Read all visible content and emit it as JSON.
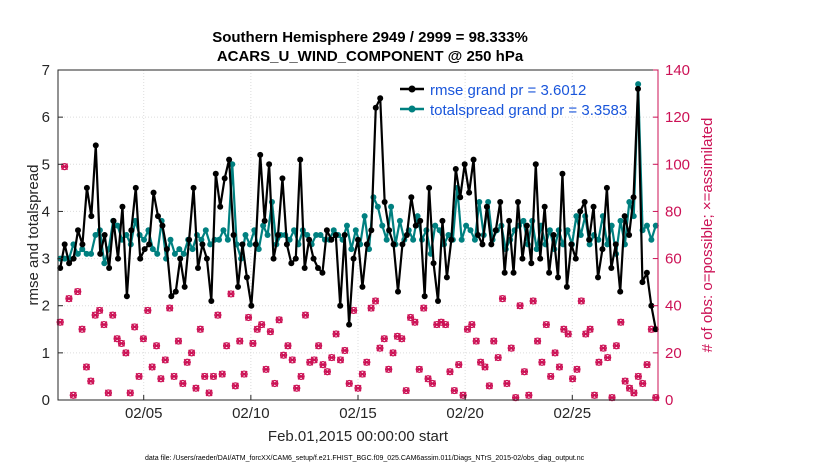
{
  "chart_data": {
    "type": "line",
    "title_line1": "Southern Hemisphere 2949 / 2999 = 98.333%",
    "title_line2": "ACARS_U_WIND_COMPONENT @ 250 hPa",
    "xlabel": "Feb.01,2015 00:00:00 start",
    "ylabel_left": "rmse and totalspread",
    "ylabel_right": "# of obs: o=possible; ×=assimilated",
    "footer": "data file: /Users/raeder/DAI/ATM_forcXX/CAM6_setup/f.e21.FHIST_BGC.f09_025.CAM6assim.011/Diags_NTrS_2015-02/obs_diag_output.nc",
    "x_range_days": [
      1,
      29
    ],
    "x_ticks": [
      {
        "label": "02/05",
        "day": 5
      },
      {
        "label": "02/10",
        "day": 10
      },
      {
        "label": "02/15",
        "day": 15
      },
      {
        "label": "02/20",
        "day": 20
      },
      {
        "label": "02/25",
        "day": 25
      }
    ],
    "ylim_left": [
      0,
      7
    ],
    "yticks_left": [
      "0",
      "1",
      "2",
      "3",
      "4",
      "5",
      "6",
      "7"
    ],
    "ylim_right": [
      0,
      140
    ],
    "yticks_right": [
      "0",
      "20",
      "40",
      "60",
      "80",
      "100",
      "120",
      "140"
    ],
    "grid": true,
    "legend_position": "top-right",
    "series": [
      {
        "name": "rmse grand pr = 3.6012",
        "color": "#000000",
        "axis": "left",
        "values": [
          2.8,
          3.3,
          2.9,
          3.0,
          3.6,
          3.3,
          4.5,
          3.9,
          5.4,
          3.1,
          3.5,
          2.8,
          3.8,
          3.0,
          4.1,
          2.2,
          3.6,
          4.5,
          3.0,
          3.2,
          3.3,
          4.4,
          3.9,
          3.7,
          3.2,
          2.2,
          2.3,
          3.0,
          2.4,
          3.4,
          4.5,
          2.8,
          3.3,
          3.0,
          2.1,
          4.8,
          4.1,
          4.7,
          5.1,
          3.5,
          2.4,
          3.3,
          2.6,
          2.0,
          3.3,
          5.2,
          3.8,
          5.0,
          3.0,
          3.5,
          4.7,
          3.3,
          2.9,
          3.0,
          5.1,
          2.8,
          3.4,
          3.0,
          2.8,
          2.7,
          3.6,
          3.4,
          3.5,
          2.0,
          3.5,
          1.6,
          3.0,
          3.4,
          2.4,
          3.3,
          3.6,
          6.2,
          6.4,
          4.2,
          3.6,
          3.3,
          2.3,
          3.3,
          3.5,
          4.3,
          3.7,
          3.8,
          2.2,
          4.5,
          2.9,
          2.1,
          3.8,
          2.6,
          3.4,
          4.9,
          4.3,
          5.0,
          4.4,
          5.1,
          3.5,
          3.3,
          4.1,
          3.3,
          3.6,
          4.2,
          2.7,
          3.8,
          2.7,
          4.2,
          3.0,
          3.7,
          2.9,
          5.0,
          3.0,
          4.1,
          2.7,
          3.5,
          2.6,
          4.8,
          2.4,
          3.3,
          3.0,
          4.0,
          4.2,
          3.4,
          4.1,
          2.6,
          3.2,
          4.5,
          2.8,
          3.3,
          2.3,
          3.9,
          3.5,
          4.3,
          6.6,
          2.5,
          2.7,
          2.0,
          1.5
        ]
      },
      {
        "name": "totalspread grand pr = 3.3583",
        "color": "#008080",
        "axis": "left",
        "values": [
          3.0,
          3.0,
          3.0,
          3.3,
          3.1,
          3.2,
          3.1,
          3.1,
          3.5,
          3.6,
          2.9,
          3.2,
          3.8,
          3.7,
          3.4,
          3.5,
          3.3,
          3.8,
          3.5,
          3.4,
          3.6,
          3.2,
          3.1,
          3.8,
          3.0,
          3.4,
          3.1,
          3.2,
          3.1,
          3.4,
          3.2,
          3.5,
          3.4,
          3.6,
          3.3,
          3.4,
          3.4,
          3.6,
          3.4,
          5.0,
          3.3,
          3.0,
          3.5,
          3.3,
          3.6,
          3.2,
          3.7,
          3.5,
          4.2,
          3.3,
          3.5,
          3.5,
          3.4,
          3.6,
          3.3,
          3.6,
          3.5,
          3.3,
          3.5,
          3.5,
          3.4,
          3.4,
          3.6,
          3.5,
          3.4,
          3.7,
          3.2,
          3.6,
          3.3,
          3.9,
          3.2,
          4.3,
          4.1,
          3.7,
          3.4,
          4.1,
          3.3,
          3.8,
          3.4,
          3.6,
          3.4,
          3.9,
          3.4,
          3.6,
          3.1,
          3.7,
          3.6,
          3.3,
          3.5,
          3.4,
          4.5,
          3.4,
          3.7,
          3.6,
          3.4,
          4.2,
          3.5,
          4.2,
          3.4,
          3.6,
          3.7,
          3.2,
          3.4,
          3.6,
          3.7,
          3.8,
          3.3,
          3.8,
          3.2,
          3.7,
          3.3,
          3.6,
          3.2,
          3.6,
          3.3,
          3.6,
          3.3,
          3.9,
          3.5,
          3.9,
          3.3,
          3.5,
          3.4,
          3.9,
          3.3,
          3.7,
          3.1,
          3.8,
          3.3,
          4.2,
          3.9,
          6.7,
          3.6,
          3.7,
          3.4,
          3.7
        ]
      }
    ],
    "obs_counts": {
      "color": "#cc1155",
      "axis": "right",
      "values": [
        33,
        99,
        43,
        2,
        46,
        30,
        14,
        8,
        36,
        38,
        32,
        3,
        36,
        26,
        24,
        20,
        3,
        31,
        10,
        26,
        38,
        14,
        23,
        9,
        17,
        39,
        10,
        25,
        7,
        16,
        20,
        5,
        30,
        10,
        3,
        10,
        36,
        11,
        23,
        45,
        6,
        25,
        11,
        35,
        24,
        30,
        32,
        13,
        29,
        7,
        34,
        19,
        23,
        17,
        5,
        10,
        36,
        16,
        17,
        23,
        15,
        12,
        18,
        28,
        17,
        21,
        7,
        38,
        5,
        11,
        16,
        39,
        42,
        22,
        26,
        13,
        20,
        27,
        26,
        4,
        35,
        33,
        13,
        39,
        9,
        7,
        32,
        33,
        32,
        12,
        4,
        15,
        2,
        30,
        32,
        25,
        16,
        14,
        6,
        25,
        18,
        43,
        7,
        22,
        1,
        40,
        12,
        2,
        42,
        25,
        16,
        32,
        10,
        20,
        14,
        30,
        28,
        9,
        13,
        42,
        28,
        30,
        2,
        16,
        22,
        18,
        1,
        23,
        33,
        8,
        5,
        3,
        10,
        7,
        15,
        30,
        1
      ]
    }
  }
}
